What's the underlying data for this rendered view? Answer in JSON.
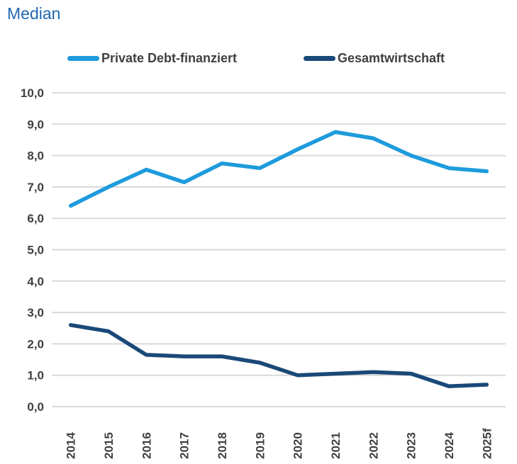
{
  "title": "Median",
  "colors": {
    "title_text": "#2067B2",
    "axis_text": "#404040",
    "legend_text": "#3F3F3F",
    "gridline": "#D9D9D9",
    "series_private_debt": "#1E9BDC",
    "series_gesamtwirtschaft": "#1A4978"
  },
  "legend": {
    "items": [
      {
        "label": "Private Debt-finanziert",
        "color": "#1E9BDC"
      },
      {
        "label": "Gesamtwirtschaft",
        "color": "#1A4978"
      }
    ]
  },
  "chart_data": {
    "type": "line",
    "title": "Median",
    "categories": [
      "2014",
      "2015",
      "2016",
      "2017",
      "2018",
      "2019",
      "2020",
      "2021",
      "2022",
      "2023",
      "2024",
      "2025f"
    ],
    "series": [
      {
        "name": "Private Debt-finanziert",
        "color": "#1E9BDC",
        "values": [
          6.4,
          7.0,
          7.55,
          7.15,
          7.75,
          7.6,
          8.2,
          8.75,
          8.55,
          8.0,
          7.6,
          7.5
        ]
      },
      {
        "name": "Gesamtwirtschaft",
        "color": "#1A4978",
        "values": [
          2.6,
          2.4,
          1.65,
          1.6,
          1.6,
          1.4,
          1.0,
          1.05,
          1.1,
          1.05,
          0.65,
          0.7
        ]
      }
    ],
    "xlabel": "",
    "ylabel": "",
    "ylim": [
      0,
      10
    ],
    "ytick_step": 1,
    "ytick_labels_bottom_up": [
      "0,0",
      "1,0",
      "2,0",
      "3,0",
      "4,0",
      "5,0",
      "6,0",
      "7,0",
      "8,0",
      "9,0",
      "10,0"
    ],
    "decimal_separator": ",",
    "grid": true,
    "legend_position": "top",
    "x_tick_rotation_deg": 90
  }
}
